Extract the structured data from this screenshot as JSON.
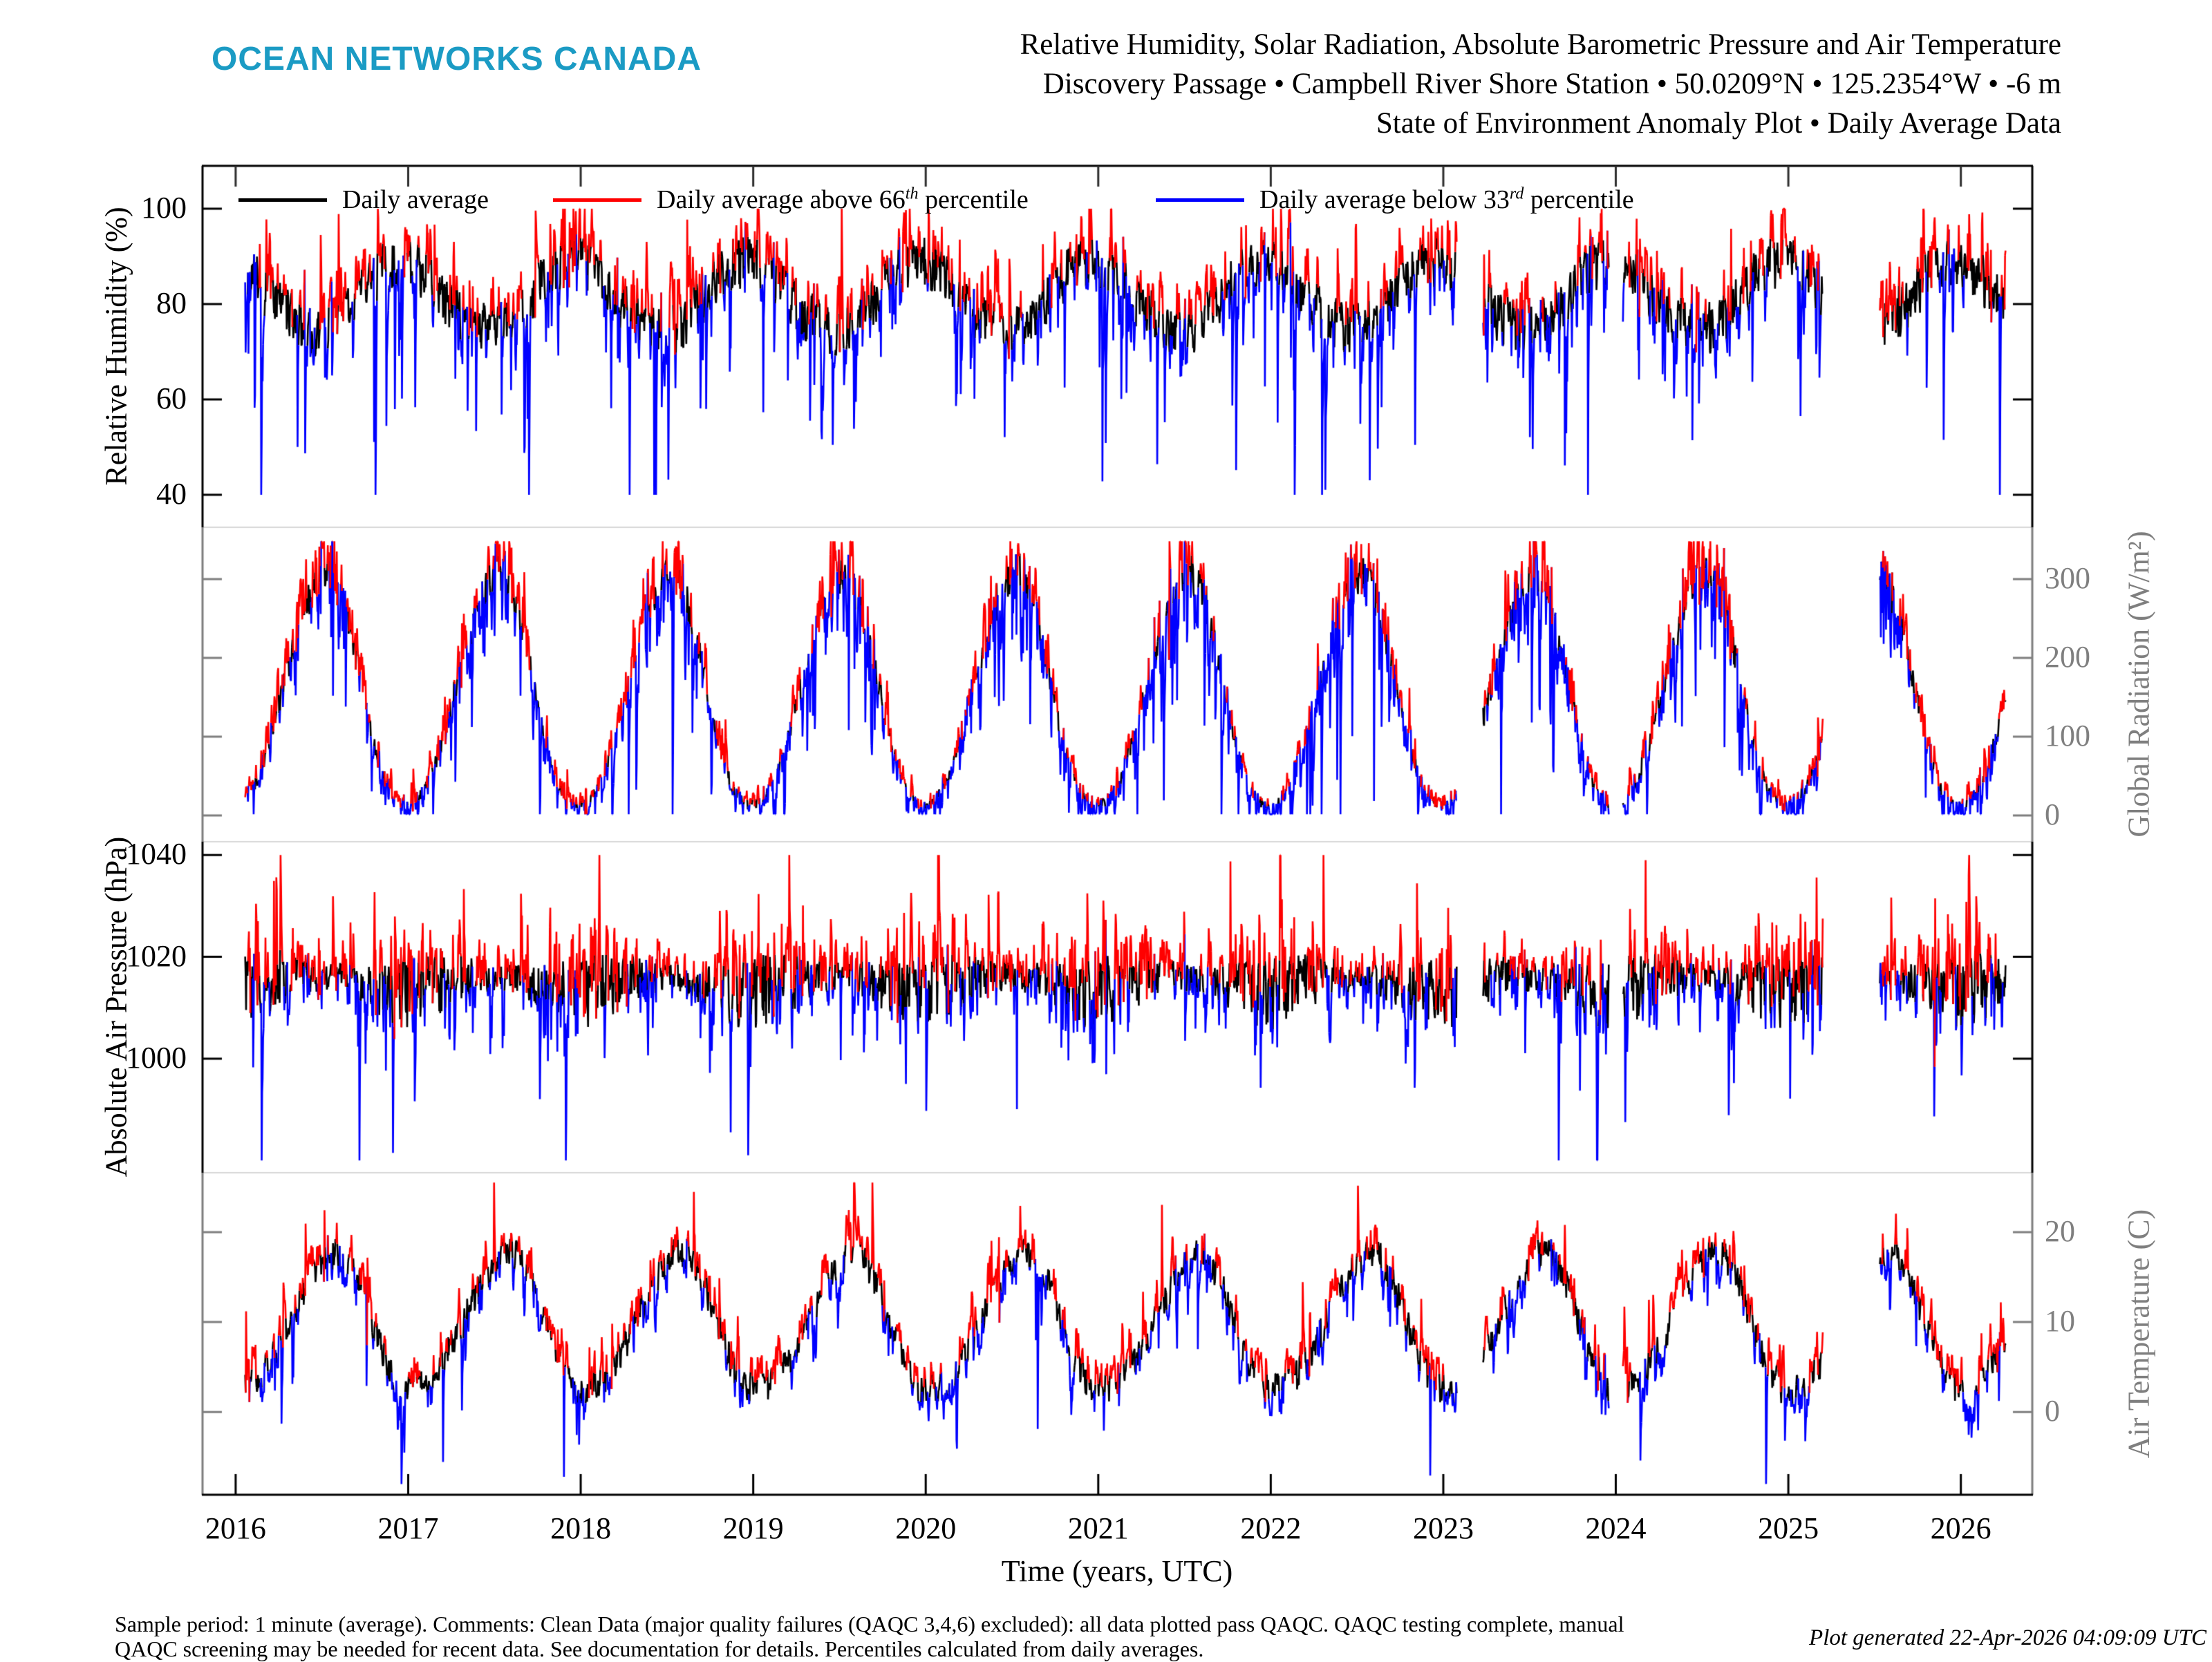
{
  "header": {
    "logo": "OCEAN NETWORKS CANADA",
    "logo_color": "#1b9bc4",
    "title_line1": "Relative Humidity, Solar Radiation, Absolute Barometric Pressure and Air Temperature",
    "title_line2": "Discovery Passage • Campbell River Shore Station • 50.0209°N • 125.2354°W • -6 m",
    "title_line3": "State of Environment Anomaly Plot • Daily Average Data"
  },
  "legend": {
    "items": [
      {
        "pre": "Daily average",
        "sup": "",
        "post": "",
        "color": "#000000"
      },
      {
        "pre": "Daily average above 66",
        "sup": "th",
        "post": " percentile",
        "color": "#ff0000"
      },
      {
        "pre": "Daily average below 33",
        "sup": "rd",
        "post": " percentile",
        "color": "#0000ff"
      }
    ]
  },
  "footer": {
    "line1": "Sample period: 1 minute (average). Comments: Clean Data (major quality failures (QAQC 3,4,6) excluded): all data plotted pass QAQC. QAQC testing complete, manual",
    "line2": "QAQC screening may be needed for recent data. See documentation for details. Percentiles calculated from daily averages.",
    "generated": "Plot generated 22-Apr-2026 04:09:09 UTC"
  },
  "chart_data": {
    "type": "line",
    "xlabel": "Time (years, UTC)",
    "x_ticks": [
      2016,
      2017,
      2018,
      2019,
      2020,
      2021,
      2022,
      2023,
      2024,
      2025,
      2026
    ],
    "x_range": [
      2015.808,
      2026.414
    ],
    "data_span": [
      2016.055,
      2026.26
    ],
    "gaps": [
      [
        2023.08,
        2023.23
      ],
      [
        2023.96,
        2024.04
      ],
      [
        2025.2,
        2025.53
      ]
    ],
    "series_colors": {
      "daily": "#000000",
      "above": "#ff0000",
      "below": "#0000ff"
    },
    "axis_gray": "#7f7f7f",
    "divider_gray": "#d8d8d8",
    "top_tick_color": "#2e2e2e",
    "panels": [
      {
        "id": "relative-humidity",
        "ylabel": "Relative Humidity (%)",
        "label_side": "left",
        "axis_color": "#000000",
        "ticks": [
          100,
          80,
          60,
          40
        ],
        "ylim": [
          33.2,
          109.0
        ],
        "seed": 11,
        "monthly_mean": [
          89,
          86,
          82,
          79,
          77,
          75.5,
          76,
          78,
          82,
          86,
          89,
          90
        ],
        "sigma": 4.2,
        "rho": 0.6,
        "noise_mode": "flat",
        "down_prob": 0.085,
        "down_scale": 13,
        "up_prob": 0.1,
        "up_scale": 5,
        "min": 40,
        "max": 100,
        "red_off": 4.5,
        "blue_off": 6.5
      },
      {
        "id": "global-radiation",
        "ylabel": "Global Radiation (W/m²)",
        "label_side": "right",
        "axis_color": "#7f7f7f",
        "ticks": [
          300,
          200,
          100,
          0
        ],
        "ylim": [
          -33.3,
          365.8
        ],
        "seed": 22,
        "monthly_mean": [
          18,
          45,
          105,
          180,
          248,
          300,
          315,
          272,
          190,
          100,
          38,
          14
        ],
        "sigma": 26,
        "rho": 0.45,
        "noise_mode": "radiation",
        "down_prob": 0.16,
        "down_scale": 55,
        "up_prob": 0.08,
        "up_scale": 22,
        "min": 1.5,
        "max": 348,
        "red_off": 15,
        "blue_off": 25
      },
      {
        "id": "absolute-air-pressure",
        "ylabel": "Absolute Air Pressure (hPa)",
        "label_side": "left",
        "axis_color": "#000000",
        "ticks": [
          1040,
          1020,
          1000
        ],
        "ylim": [
          977.6,
          1042.6
        ],
        "seed": 33,
        "monthly_mean": [
          1014.5,
          1015.5,
          1016,
          1016.5,
          1017,
          1016.5,
          1016.5,
          1016.2,
          1015.5,
          1014.8,
          1014.2,
          1014
        ],
        "sigma": 4.3,
        "rho": 0.45,
        "noise_mode": "winter",
        "down_prob": 0.05,
        "down_scale": 9,
        "up_prob": 0.05,
        "up_scale": 7,
        "min": 980,
        "max": 1040,
        "red_off": 4,
        "blue_off": 6
      },
      {
        "id": "air-temperature",
        "ylabel": "Air Temperature (C)",
        "label_side": "right",
        "axis_color": "#7f7f7f",
        "ticks": [
          20,
          10,
          0
        ],
        "ylim": [
          -9.2,
          26.6
        ],
        "seed": 44,
        "monthly_mean": [
          2.8,
          3.6,
          6,
          9,
          12.5,
          15.5,
          17.8,
          17.8,
          14.8,
          10,
          5.5,
          3
        ],
        "sigma": 1.7,
        "rho": 0.72,
        "noise_mode": "flat",
        "down_prob": 0.05,
        "down_scale": 3,
        "up_prob": 0.05,
        "up_scale": 2.4,
        "min": -8,
        "max": 25.5,
        "red_off": 1.5,
        "blue_off": 2.0
      }
    ]
  }
}
